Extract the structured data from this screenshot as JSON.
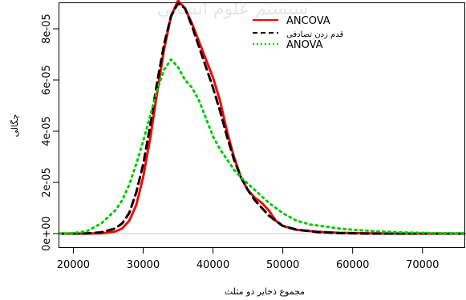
{
  "chart_data": {
    "type": "line",
    "title": "",
    "xlabel": "مجموع ذخایر دو مثلث",
    "ylabel": "چگالی",
    "xlim": [
      18000,
      76000
    ],
    "ylim": [
      0,
      9e-05
    ],
    "xticks": [
      20000,
      30000,
      40000,
      50000,
      60000,
      70000
    ],
    "xtick_labels": [
      "20000",
      "30000",
      "40000",
      "50000",
      "60000",
      "70000"
    ],
    "yticks": [
      0,
      2e-05,
      4e-05,
      6e-05,
      8e-05
    ],
    "ytick_labels": [
      "0e+00",
      "2e-05",
      "4e-05",
      "6e-05",
      "8e-05"
    ],
    "grid": false,
    "legend_position": "top-right",
    "reference_line_y": 0,
    "series": [
      {
        "name": "ANCOVA",
        "color": "#ff0000",
        "dash": "solid",
        "x": [
          18000,
          20000,
          22000,
          24000,
          26000,
          27000,
          28000,
          29000,
          30000,
          31000,
          32000,
          33000,
          34000,
          35000,
          36000,
          37000,
          38000,
          39000,
          40000,
          41000,
          42000,
          43000,
          44000,
          45000,
          46000,
          47000,
          48000,
          49000,
          50000,
          52000,
          55000,
          58000,
          62000,
          66000,
          70000,
          76000
        ],
        "y": [
          0,
          0,
          0,
          1e-07,
          8e-07,
          2e-06,
          5e-06,
          1.1e-05,
          2.2e-05,
          3.7e-05,
          5.5e-05,
          7.2e-05,
          8.5e-05,
          9.1e-05,
          8.8e-05,
          8.2e-05,
          7.5e-05,
          6.8e-05,
          6.1e-05,
          5.2e-05,
          4e-05,
          3e-05,
          2.2e-05,
          1.7e-05,
          1.4e-05,
          1.2e-05,
          9e-06,
          5e-06,
          3e-06,
          1.5e-06,
          7e-07,
          3e-07,
          1e-07,
          0,
          0,
          0
        ]
      },
      {
        "name": "قدم زدن تصادفی",
        "color": "#000000",
        "dash": "dashed",
        "x": [
          18000,
          20000,
          22000,
          24000,
          26000,
          27000,
          28000,
          29000,
          30000,
          31000,
          32000,
          33000,
          34000,
          35000,
          36000,
          37000,
          38000,
          39000,
          40000,
          41000,
          42000,
          43000,
          44000,
          45000,
          46000,
          47000,
          48000,
          49000,
          50000,
          52000,
          55000,
          58000,
          62000,
          66000,
          70000,
          76000
        ],
        "y": [
          0,
          0,
          1e-07,
          5e-07,
          2e-06,
          4e-06,
          8e-06,
          1.6e-05,
          2.7e-05,
          4.2e-05,
          5.9e-05,
          7.4e-05,
          8.5e-05,
          9e-05,
          8.8e-05,
          8.1e-05,
          7.3e-05,
          6.5e-05,
          5.7e-05,
          4.8e-05,
          3.8e-05,
          2.9e-05,
          2.2e-05,
          1.7e-05,
          1.3e-05,
          1e-05,
          7e-06,
          5e-06,
          3e-06,
          1.5e-06,
          6e-07,
          2e-07,
          0,
          0,
          0,
          0
        ]
      },
      {
        "name": "ANOVA",
        "color": "#00cc00",
        "dash": "dotted",
        "x": [
          18000,
          20000,
          22000,
          24000,
          26000,
          27000,
          28000,
          29000,
          30000,
          31000,
          32000,
          33000,
          34000,
          35000,
          36000,
          37000,
          38000,
          39000,
          40000,
          41000,
          42000,
          43000,
          44000,
          46000,
          48000,
          50000,
          52000,
          54000,
          56000,
          58000,
          60000,
          64000,
          68000,
          72000,
          76000
        ],
        "y": [
          0,
          2e-07,
          1e-06,
          4e-06,
          9e-06,
          1.3e-05,
          1.9e-05,
          2.7e-05,
          3.6e-05,
          4.6e-05,
          5.6e-05,
          6.4e-05,
          6.8e-05,
          6.5e-05,
          6e-05,
          5.7e-05,
          5.2e-05,
          4.5e-05,
          3.8e-05,
          3.3e-05,
          2.9e-05,
          2.5e-05,
          2.2e-05,
          1.7e-05,
          1.2e-05,
          8e-06,
          5e-06,
          3.5e-06,
          2.8e-06,
          2e-06,
          1.5e-06,
          8e-07,
          4e-07,
          2e-07,
          1e-07
        ]
      }
    ]
  }
}
